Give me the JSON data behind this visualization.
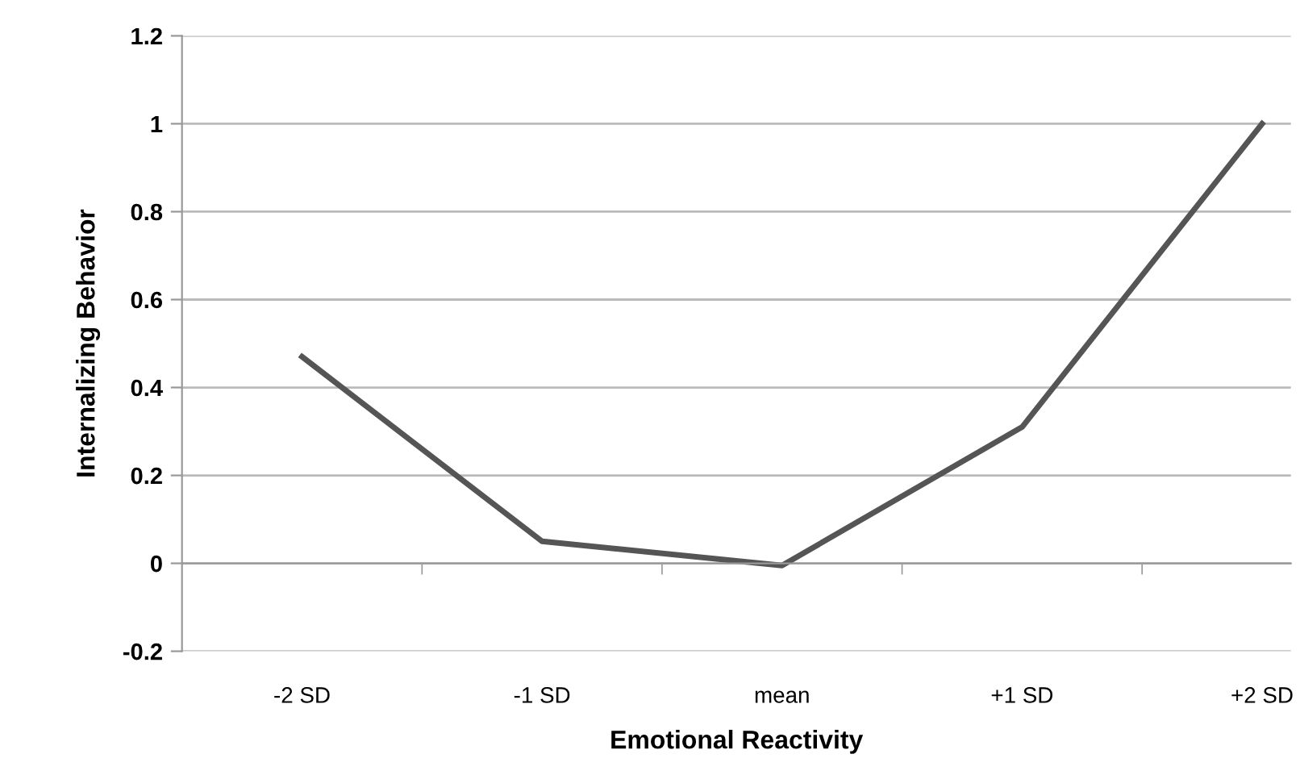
{
  "chart_data": {
    "type": "line",
    "xlabel": "Emotional Reactivity",
    "ylabel": "Internalizing Behavior",
    "categories": [
      "-2 SD",
      "-1 SD",
      "mean",
      "+1 SD",
      "+2 SD"
    ],
    "series": [
      {
        "color": "#555555",
        "values": [
          0.47,
          0.05,
          -0.005,
          0.31,
          1.0
        ]
      }
    ],
    "ylim": [
      -0.2,
      1.2
    ],
    "yticks": [
      {
        "value": -0.2,
        "label": "-0.2"
      },
      0,
      0.2,
      0.4,
      0.6,
      0.8,
      1,
      1.2
    ],
    "grid": "y",
    "legend": false,
    "marker": "none",
    "line_style": "solid"
  }
}
